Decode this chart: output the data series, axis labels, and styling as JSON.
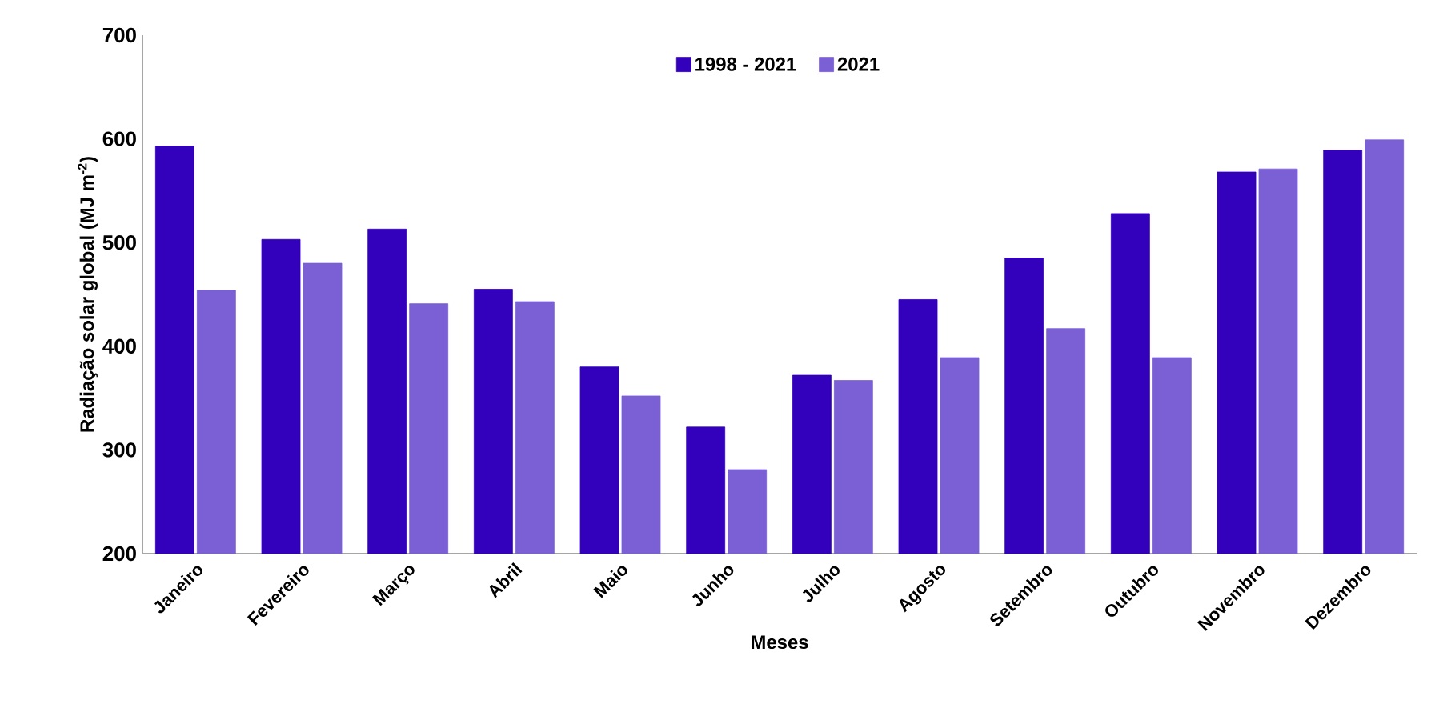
{
  "chart_data": {
    "type": "bar",
    "xlabel": "Meses",
    "ylabel": "Radiação solar global (MJ m$^{-2}$)",
    "categories": [
      "Janeiro",
      "Fevereiro",
      "Março",
      "Abril",
      "Maio",
      "Junho",
      "Julho",
      "Agosto",
      "Setembro",
      "Outubro",
      "Novembro",
      "Dezembro"
    ],
    "series": [
      {
        "name": "1998 - 2021",
        "color": "#3300bb",
        "values": [
          593,
          503,
          513,
          455,
          380,
          322,
          372,
          445,
          485,
          528,
          568,
          589
        ]
      },
      {
        "name": "2021",
        "color": "#7a60d4",
        "values": [
          454,
          480,
          441,
          443,
          352,
          281,
          367,
          389,
          417,
          389,
          571,
          599
        ]
      }
    ],
    "ylim": [
      200,
      700
    ],
    "yticks": [
      200,
      300,
      400,
      500,
      600,
      700
    ],
    "grid": false,
    "legend": "top"
  }
}
